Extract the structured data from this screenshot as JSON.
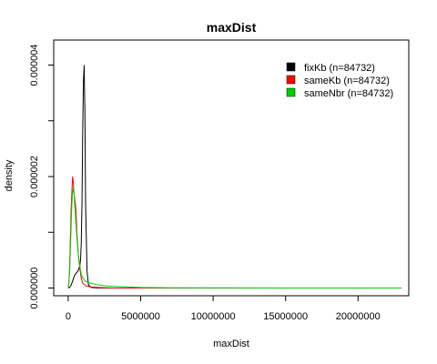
{
  "chart_data": {
    "type": "line",
    "title": "maxDist",
    "xlabel": "maxDist",
    "ylabel": "density",
    "xlim": [
      -1000000,
      23500000
    ],
    "ylim": [
      0,
      4e-06
    ],
    "x_ticks": [
      0,
      5000000,
      10000000,
      15000000,
      20000000
    ],
    "x_tick_labels": [
      "0",
      "5000000",
      "10000000",
      "15000000",
      "20000000"
    ],
    "y_ticks": [
      0,
      2e-06,
      4e-06
    ],
    "y_tick_labels": [
      "0.000000",
      "0.000002",
      "0.000004"
    ],
    "grid": false,
    "legend_position": "top-right",
    "series": [
      {
        "name": "fixKb (n=84732)",
        "color": "#000000",
        "x": [
          0,
          100000,
          200000,
          300000,
          400000,
          500000,
          600000,
          700000,
          800000,
          850000,
          900000,
          950000,
          1000000,
          1050000,
          1100000,
          1150000,
          1200000,
          1300000,
          1400000,
          1600000,
          2000000,
          5000000,
          10000000,
          23000000
        ],
        "y": [
          0,
          1e-08,
          5e-08,
          1.2e-07,
          2e-07,
          2.5e-07,
          2.8e-07,
          3.2e-07,
          4e-07,
          5e-07,
          8e-07,
          1.5e-06,
          2.8e-06,
          3.7e-06,
          4e-06,
          3.2e-06,
          1.5e-06,
          3e-07,
          5e-08,
          1e-08,
          0,
          0,
          0,
          0
        ]
      },
      {
        "name": "sameKb (n=84732)",
        "color": "#ff0000",
        "x": [
          0,
          50000,
          100000,
          150000,
          200000,
          250000,
          300000,
          350000,
          400000,
          450000,
          500000,
          550000,
          600000,
          700000,
          800000,
          900000,
          1000000,
          1200000,
          1500000,
          2000000,
          3000000,
          5000000,
          10000000,
          23000000
        ],
        "y": [
          0,
          1e-07,
          4e-07,
          9e-07,
          1.4e-06,
          1.7e-06,
          2e-06,
          1.9e-06,
          1.7e-06,
          1.6e-06,
          1.5e-06,
          1.3e-06,
          1e-06,
          6e-07,
          3.5e-07,
          1.8e-07,
          9e-08,
          4e-08,
          2e-08,
          1e-08,
          0,
          0,
          0,
          0
        ]
      },
      {
        "name": "sameNbr (n=84732)",
        "color": "#00cc00",
        "x": [
          0,
          50000,
          100000,
          150000,
          200000,
          250000,
          300000,
          350000,
          400000,
          450000,
          500000,
          600000,
          700000,
          800000,
          900000,
          1000000,
          1200000,
          1500000,
          2000000,
          2500000,
          3000000,
          4000000,
          5000000,
          7000000,
          10000000,
          15000000,
          20000000,
          23000000
        ],
        "y": [
          0,
          1e-07,
          3e-07,
          7e-07,
          1.1e-06,
          1.5e-06,
          1.7e-06,
          1.8e-06,
          1.7e-06,
          1.5e-06,
          1.3e-06,
          9e-07,
          6e-07,
          4e-07,
          2.5e-07,
          1.8e-07,
          1.2e-07,
          9e-08,
          6e-08,
          4e-08,
          3e-08,
          2e-08,
          1e-08,
          5e-09,
          2e-09,
          1e-09,
          1e-09,
          0
        ]
      }
    ]
  }
}
